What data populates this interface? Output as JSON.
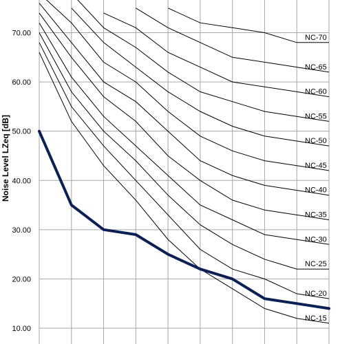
{
  "chart_data": {
    "type": "line",
    "ylabel": "Noise Level LZeq [dB]",
    "xlabel": "",
    "ylim": [
      8.5,
      75
    ],
    "yticks": [
      "10.00",
      "20.00",
      "30.00",
      "40.00",
      "50.00",
      "60.00",
      "70.00"
    ],
    "x": [
      1,
      2,
      3,
      4,
      5,
      6,
      7,
      8,
      9,
      10
    ],
    "grid": true,
    "nc_curves": [
      {
        "name": "NC-70",
        "label": "NC-70",
        "values": [
          null,
          null,
          null,
          null,
          75,
          72,
          71,
          70,
          68,
          68
        ]
      },
      {
        "name": "NC-65",
        "label": "NC-65",
        "values": [
          null,
          null,
          null,
          75,
          71,
          68,
          65,
          64,
          63,
          62
        ]
      },
      {
        "name": "NC-60",
        "label": "NC-60",
        "values": [
          null,
          null,
          74,
          71,
          66,
          63,
          60,
          59,
          58,
          57
        ]
      },
      {
        "name": "NC-55",
        "label": "NC-55",
        "values": [
          null,
          78,
          71,
          67,
          62,
          58,
          56,
          54,
          53,
          52
        ]
      },
      {
        "name": "NC-50",
        "label": "NC-50",
        "values": [
          null,
          75,
          68,
          63,
          58,
          54,
          51,
          49,
          48,
          47
        ]
      },
      {
        "name": "NC-45",
        "label": "NC-45",
        "values": [
          78,
          72,
          64,
          60,
          54,
          49,
          46,
          44,
          43,
          42
        ]
      },
      {
        "name": "NC-40",
        "label": "NC-40",
        "values": [
          76,
          68,
          60,
          56,
          50,
          44,
          41,
          39,
          38,
          37
        ]
      },
      {
        "name": "NC-35",
        "label": "NC-35",
        "values": [
          74,
          65,
          57,
          52,
          45,
          40,
          36,
          34,
          33,
          32
        ]
      },
      {
        "name": "NC-30",
        "label": "NC-30",
        "values": [
          72,
          61,
          53,
          47,
          41,
          35,
          32,
          29,
          28,
          27
        ]
      },
      {
        "name": "NC-25",
        "label": "NC-25",
        "values": [
          70,
          58,
          50,
          44,
          37,
          31,
          27,
          24,
          22,
          22
        ]
      },
      {
        "name": "NC-20",
        "label": "NC-20",
        "values": [
          68,
          55,
          47,
          40,
          33,
          26,
          22,
          20,
          17,
          16
        ]
      },
      {
        "name": "NC-15",
        "label": "NC-15",
        "values": [
          66,
          52,
          43,
          36,
          28,
          22,
          18,
          14,
          12,
          11
        ]
      }
    ],
    "measured": {
      "name": "",
      "values": [
        50,
        35,
        30,
        29,
        25,
        22,
        20,
        16,
        15,
        14
      ],
      "color": "#0b2155"
    }
  }
}
